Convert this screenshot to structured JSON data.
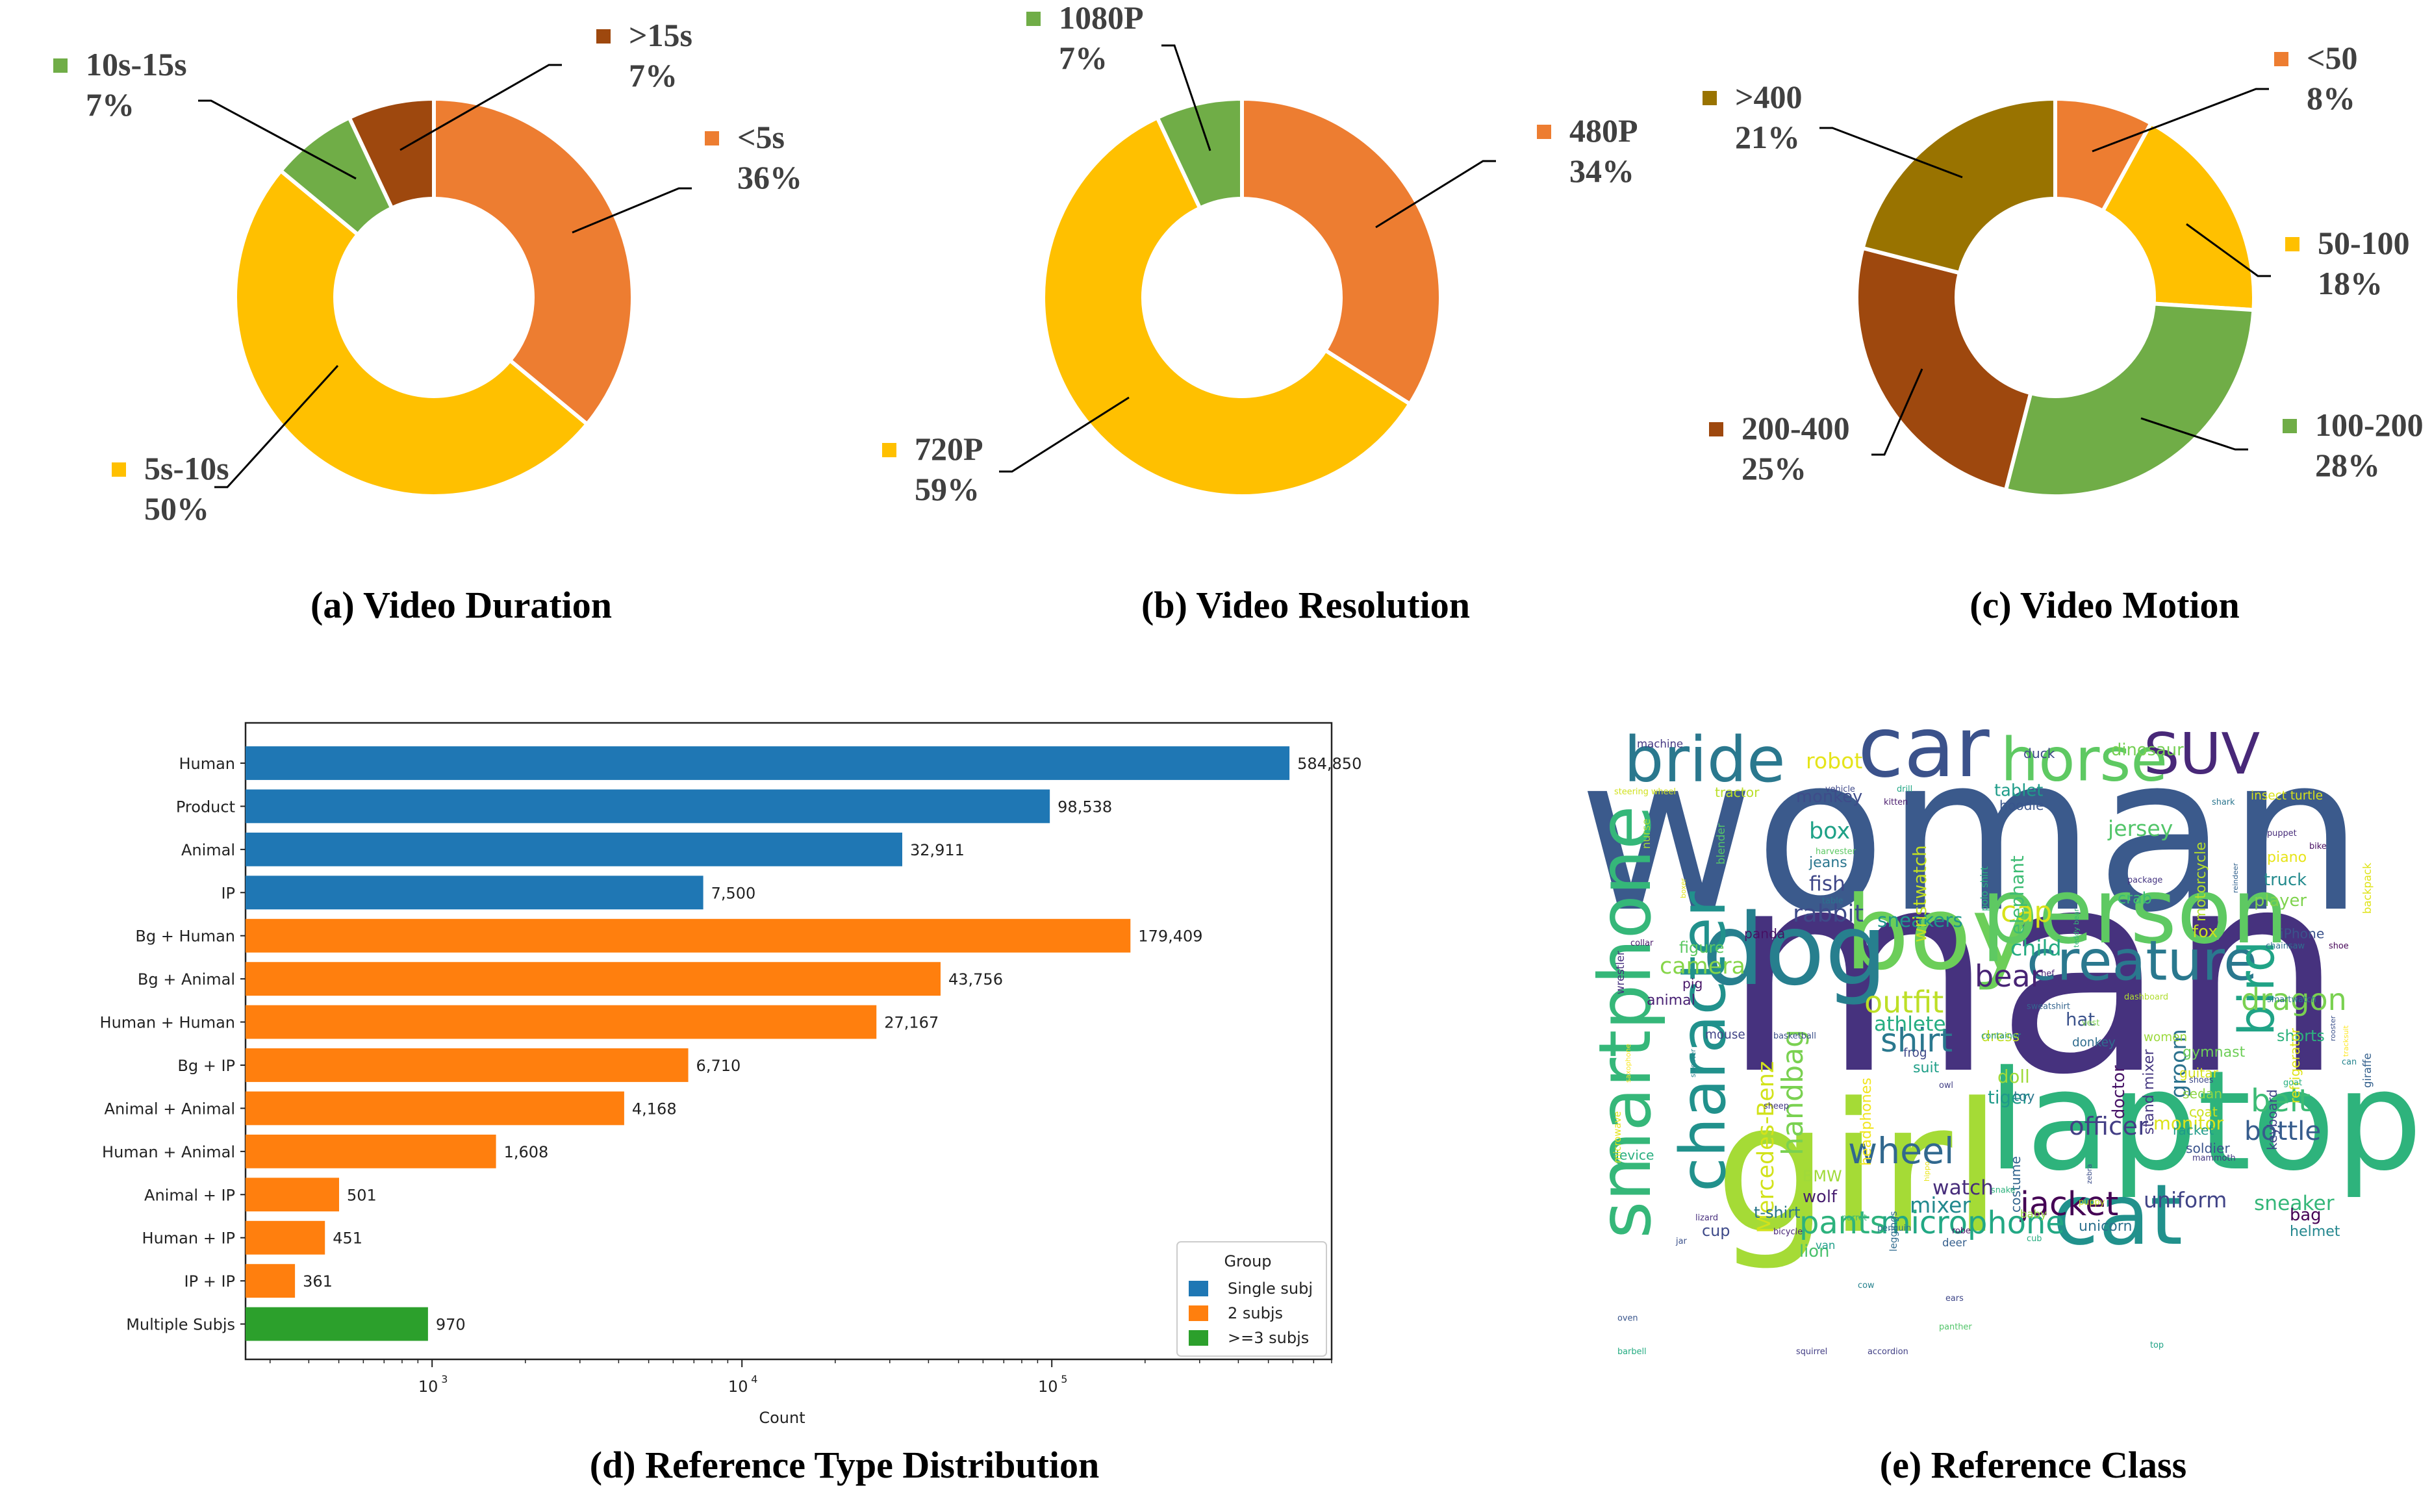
{
  "captions": {
    "a": "(a) Video Duration",
    "b": "(b) Video Resolution",
    "c": "(c) Video Motion",
    "d": "(d) Reference Type Distribution",
    "e": "(e) Reference Class"
  },
  "chart_data": [
    {
      "type": "pie",
      "title": "(a) Video Duration",
      "donut": true,
      "slices": [
        {
          "label": "<5s",
          "value": 36,
          "pct_label": "36%",
          "color": "#ED7D31"
        },
        {
          "label": "5s-10s",
          "value": 50,
          "pct_label": "50%",
          "color": "#FFC000"
        },
        {
          "label": "10s-15s",
          "value": 7,
          "pct_label": "7%",
          "color": "#70AD47"
        },
        {
          "label": ">15s",
          "value": 7,
          "pct_label": "7%",
          "color": "#9E480E"
        }
      ]
    },
    {
      "type": "pie",
      "title": "(b) Video Resolution",
      "donut": true,
      "slices": [
        {
          "label": "480P",
          "value": 34,
          "pct_label": "34%",
          "color": "#ED7D31"
        },
        {
          "label": "720P",
          "value": 59,
          "pct_label": "59%",
          "color": "#FFC000"
        },
        {
          "label": "1080P",
          "value": 7,
          "pct_label": "7%",
          "color": "#70AD47"
        }
      ]
    },
    {
      "type": "pie",
      "title": "(c) Video Motion",
      "donut": true,
      "slices": [
        {
          "label": "<50",
          "value": 8,
          "pct_label": "8%",
          "color": "#ED7D31"
        },
        {
          "label": "50-100",
          "value": 18,
          "pct_label": "18%",
          "color": "#FFC000"
        },
        {
          "label": "100-200",
          "value": 28,
          "pct_label": "28%",
          "color": "#70AD47"
        },
        {
          "label": "200-400",
          "value": 25,
          "pct_label": "25%",
          "color": "#9E480E"
        },
        {
          "label": ">400",
          "value": 21,
          "pct_label": "21%",
          "color": "#997300"
        }
      ]
    },
    {
      "type": "bar",
      "orientation": "horizontal",
      "title": "(d) Reference Type Distribution",
      "xlabel": "Count",
      "ylabel": "",
      "xscale": "log",
      "xlim": [
        250,
        800000
      ],
      "xticks": [
        {
          "value": 1000,
          "base": "10",
          "exp": "3"
        },
        {
          "value": 10000,
          "base": "10",
          "exp": "4"
        },
        {
          "value": 100000,
          "base": "10",
          "exp": "5"
        }
      ],
      "categories": [
        "Human",
        "Product",
        "Animal",
        "IP",
        "Bg + Human",
        "Bg + Animal",
        "Human + Human",
        "Bg + IP",
        "Animal + Animal",
        "Human + Animal",
        "Animal + IP",
        "Human + IP",
        "IP + IP",
        "Multiple Subjs"
      ],
      "values": [
        584850,
        98538,
        32911,
        7500,
        179409,
        43756,
        27167,
        6710,
        4168,
        1608,
        501,
        451,
        361,
        970
      ],
      "value_labels": [
        "584,850",
        "98,538",
        "32,911",
        "7,500",
        "179,409",
        "43,756",
        "27,167",
        "6,710",
        "4,168",
        "1,608",
        "501",
        "451",
        "361",
        "970"
      ],
      "groups": [
        "Single subj",
        "Single subj",
        "Single subj",
        "Single subj",
        "2 subjs",
        "2 subjs",
        "2 subjs",
        "2 subjs",
        "2 subjs",
        "2 subjs",
        "2 subjs",
        "2 subjs",
        "2 subjs",
        ">=3 subjs"
      ],
      "legend": {
        "title": "Group",
        "placement": "bottom-right",
        "entries": [
          {
            "label": "Single subj",
            "color": "#1F77B4"
          },
          {
            "label": "2 subjs",
            "color": "#FF7F0E"
          },
          {
            "label": ">=3 subjs",
            "color": "#2CA02C"
          }
        ]
      },
      "grid": false
    }
  ],
  "wordcloud": {
    "title": "(e) Reference Class",
    "words": [
      {
        "text": "woman",
        "weight": 100,
        "color": "#3B5A8C"
      },
      {
        "text": "man",
        "weight": 100,
        "color": "#46327E"
      },
      {
        "text": "girl",
        "weight": 70,
        "color": "#A5DB36"
      },
      {
        "text": "laptop",
        "weight": 65,
        "color": "#2EB37C"
      },
      {
        "text": "boy",
        "weight": 55,
        "color": "#6CCE59"
      },
      {
        "text": "person",
        "weight": 55,
        "color": "#5EC962"
      },
      {
        "text": "dog",
        "weight": 52,
        "color": "#277F8E"
      },
      {
        "text": "car",
        "weight": 50,
        "color": "#3B528B"
      },
      {
        "text": "smartphone",
        "weight": 50,
        "color": "#35B779"
      },
      {
        "text": "character",
        "weight": 45,
        "color": "#21918C"
      },
      {
        "text": "cat",
        "weight": 45,
        "color": "#21918C"
      },
      {
        "text": "bride",
        "weight": 42,
        "color": "#2A788E"
      },
      {
        "text": "horse",
        "weight": 42,
        "color": "#5EC962"
      },
      {
        "text": "SUV",
        "weight": 40,
        "color": "#482878"
      },
      {
        "text": "creature",
        "weight": 40,
        "color": "#2A788E"
      },
      {
        "text": "bird",
        "weight": 38,
        "color": "#20A386"
      },
      {
        "text": "wheel",
        "weight": 28,
        "color": "#31688E"
      },
      {
        "text": "jacket",
        "weight": 26,
        "color": "#440154"
      },
      {
        "text": "microphone",
        "weight": 26,
        "color": "#22A884"
      },
      {
        "text": "pants",
        "weight": 26,
        "color": "#2DB27D"
      },
      {
        "text": "handbag",
        "weight": 26,
        "color": "#7AD151"
      },
      {
        "text": "outfit",
        "weight": 25,
        "color": "#BDDF26"
      },
      {
        "text": "shirt",
        "weight": 25,
        "color": "#2A788E"
      },
      {
        "text": "dragon",
        "weight": 24,
        "color": "#7AD151"
      },
      {
        "text": "bear",
        "weight": 24,
        "color": "#482475"
      },
      {
        "text": "Mercedes-Benz",
        "weight": 22,
        "color": "#D2E21B"
      },
      {
        "text": "officer",
        "weight": 22,
        "color": "#433E85"
      },
      {
        "text": "bottle",
        "weight": 22,
        "color": "#365C8D"
      },
      {
        "text": "belt",
        "weight": 22,
        "color": "#3CBB75"
      },
      {
        "text": "cap",
        "weight": 22,
        "color": "#D8E219"
      },
      {
        "text": "rabbit",
        "weight": 20,
        "color": "#3E4A89"
      },
      {
        "text": "camera",
        "weight": 20,
        "color": "#86D549"
      },
      {
        "text": "groom",
        "weight": 20,
        "color": "#2C728E"
      },
      {
        "text": "uniform",
        "weight": 19,
        "color": "#414487"
      },
      {
        "text": "jersey",
        "weight": 19,
        "color": "#52C569"
      },
      {
        "text": "robot",
        "weight": 18,
        "color": "#E5E419"
      },
      {
        "text": "child",
        "weight": 18,
        "color": "#25AB82"
      },
      {
        "text": "box",
        "weight": 18,
        "color": "#1FA187"
      },
      {
        "text": "fish",
        "weight": 17,
        "color": "#3F4788"
      },
      {
        "text": "sneakers",
        "weight": 17,
        "color": "#1F968B"
      },
      {
        "text": "athlete",
        "weight": 17,
        "color": "#26AD81"
      },
      {
        "text": "wristwatch",
        "weight": 17,
        "color": "#C2DF23"
      },
      {
        "text": "elephant",
        "weight": 17,
        "color": "#3DBC74"
      },
      {
        "text": "sneaker",
        "weight": 17,
        "color": "#35B779"
      },
      {
        "text": "mixer",
        "weight": 17,
        "color": "#23898E"
      },
      {
        "text": "t-shirt",
        "weight": 16,
        "color": "#54C568"
      },
      {
        "text": "watch",
        "weight": 16,
        "color": "#472D7B"
      },
      {
        "text": "monkey",
        "weight": 15,
        "color": "#3E4C8A"
      },
      {
        "text": "dinosaur",
        "weight": 15,
        "color": "#75D054"
      },
      {
        "text": "tablet",
        "weight": 15,
        "color": "#1E9C89"
      },
      {
        "text": "motorcycle",
        "weight": 14,
        "color": "#B5DE2B"
      },
      {
        "text": "doctor",
        "weight": 14,
        "color": "#481467"
      },
      {
        "text": "stand mixer",
        "weight": 14,
        "color": "#453781"
      },
      {
        "text": "headphones",
        "weight": 14,
        "color": "#F1E51D"
      },
      {
        "text": "tiger",
        "weight": 14,
        "color": "#1F9A8A"
      },
      {
        "text": "doll",
        "weight": 14,
        "color": "#9FDA3A"
      },
      {
        "text": "bag",
        "weight": 14,
        "color": "#440154"
      },
      {
        "text": "monitor",
        "weight": 14,
        "color": "#DCE319"
      },
      {
        "text": "hat",
        "weight": 14,
        "color": "#3B528B"
      },
      {
        "text": "cup",
        "weight": 13,
        "color": "#3E4A89"
      },
      {
        "text": "lion",
        "weight": 13,
        "color": "#4AC16D"
      },
      {
        "text": "wolf",
        "weight": 13,
        "color": "#481F70"
      },
      {
        "text": "BMW",
        "weight": 13,
        "color": "#A0DA39"
      },
      {
        "text": "figure",
        "weight": 13,
        "color": "#5DC863"
      },
      {
        "text": "animal",
        "weight": 13,
        "color": "#482173"
      },
      {
        "text": "truck",
        "weight": 13,
        "color": "#238A8D"
      },
      {
        "text": "player",
        "weight": 13,
        "color": "#7FD34E"
      },
      {
        "text": "piano",
        "weight": 12,
        "color": "#E7E419"
      },
      {
        "text": "fox",
        "weight": 12,
        "color": "#C8E020"
      },
      {
        "text": "crab",
        "weight": 12,
        "color": "#3BBB75"
      },
      {
        "text": "shorts",
        "weight": 12,
        "color": "#2DB27D"
      },
      {
        "text": "keyboard",
        "weight": 12,
        "color": "#404688"
      },
      {
        "text": "refrigerator",
        "weight": 12,
        "color": "#DDE318"
      },
      {
        "text": "helmet",
        "weight": 12,
        "color": "#24878E"
      },
      {
        "text": "unicorn",
        "weight": 12,
        "color": "#2D718E"
      },
      {
        "text": "costume",
        "weight": 12,
        "color": "#32648E"
      },
      {
        "text": "device",
        "weight": 12,
        "color": "#29AF7F"
      },
      {
        "text": "t-shirt",
        "weight": 12,
        "color": "#2C738E"
      },
      {
        "text": "suit",
        "weight": 12,
        "color": "#1F9F88"
      },
      {
        "text": "dress",
        "weight": 12,
        "color": "#C0DF25"
      },
      {
        "text": "gymnast",
        "weight": 12,
        "color": "#6ECE58"
      },
      {
        "text": "guitar",
        "weight": 12,
        "color": "#D5E21A"
      },
      {
        "text": "sedan",
        "weight": 12,
        "color": "#8ED645"
      },
      {
        "text": "coat",
        "weight": 12,
        "color": "#CAE11F"
      },
      {
        "text": "soldier",
        "weight": 12,
        "color": "#3A548C"
      },
      {
        "text": "racket",
        "weight": 12,
        "color": "#1E9B8A"
      },
      {
        "text": "pig",
        "weight": 12,
        "color": "#481769"
      },
      {
        "text": "panda",
        "weight": 12,
        "color": "#471164"
      },
      {
        "text": "jeans",
        "weight": 12,
        "color": "#2A768E"
      },
      {
        "text": "tractor",
        "weight": 12,
        "color": "#BADE28"
      },
      {
        "text": "hoodie",
        "weight": 11,
        "color": "#39558C"
      },
      {
        "text": "duck",
        "weight": 11,
        "color": "#3E4989"
      },
      {
        "text": "insect turtle",
        "weight": 11,
        "color": "#D8E219"
      },
      {
        "text": "backpack",
        "weight": 11,
        "color": "#DFE318"
      },
      {
        "text": "giraffe",
        "weight": 11,
        "color": "#34608D"
      },
      {
        "text": "donkey",
        "weight": 11,
        "color": "#2F6C8E"
      },
      {
        "text": "women",
        "weight": 11,
        "color": "#9BD93C"
      },
      {
        "text": "frog",
        "weight": 11,
        "color": "#3F4889"
      },
      {
        "text": "toy",
        "weight": 11,
        "color": "#2A788E"
      },
      {
        "text": "mouse",
        "weight": 11,
        "color": "#414487"
      },
      {
        "text": "blender",
        "weight": 11,
        "color": "#54C568"
      },
      {
        "text": "nurse",
        "weight": 11,
        "color": "#A2DA37"
      },
      {
        "text": "wrestler",
        "weight": 11,
        "color": "#46307E"
      },
      {
        "text": "microwave",
        "weight": 10,
        "color": "#E3E418"
      },
      {
        "text": "baby",
        "weight": 10,
        "color": "#95D840"
      },
      {
        "text": "leggings",
        "weight": 10,
        "color": "#2F6B8E"
      },
      {
        "text": "van",
        "weight": 10,
        "color": "#1F9E89"
      },
      {
        "text": "deer",
        "weight": 10,
        "color": "#355F8D"
      },
      {
        "text": "polo shirt",
        "weight": 10,
        "color": "#29AF7F"
      },
      {
        "text": "machine",
        "weight": 9,
        "color": "#453882"
      },
      {
        "text": "steering wheel",
        "weight": 9,
        "color": "#D0E11C"
      },
      {
        "text": "vehicle",
        "weight": 8,
        "color": "#3F4889"
      },
      {
        "text": "drill",
        "weight": 8,
        "color": "#22A785"
      },
      {
        "text": "kitten",
        "weight": 8,
        "color": "#481A6C"
      },
      {
        "text": "harvester",
        "weight": 8,
        "color": "#5CC863"
      },
      {
        "text": "table",
        "weight": 8,
        "color": "#2C728E"
      },
      {
        "text": "boxer",
        "weight": 8,
        "color": "#E2E418"
      },
      {
        "text": "teddy bear",
        "weight": 8,
        "color": "#36B677"
      },
      {
        "text": "reindeer",
        "weight": 8,
        "color": "#33628D"
      },
      {
        "text": "package",
        "weight": 8,
        "color": "#453581"
      },
      {
        "text": "shark",
        "weight": 8,
        "color": "#2B758E"
      },
      {
        "text": "puppet",
        "weight": 8,
        "color": "#472C7A"
      },
      {
        "text": "bike",
        "weight": 8,
        "color": "#470E61"
      },
      {
        "text": "iPhone",
        "weight": 10,
        "color": "#3B528B"
      },
      {
        "text": "chainsaw",
        "weight": 8,
        "color": "#2E6E8E"
      },
      {
        "text": "shoe",
        "weight": 8,
        "color": "#450457"
      },
      {
        "text": "collar",
        "weight": 8,
        "color": "#48186A"
      },
      {
        "text": "chef",
        "weight": 8,
        "color": "#482576"
      },
      {
        "text": "sweatshirt",
        "weight": 8,
        "color": "#33638D"
      },
      {
        "text": "dashboard",
        "weight": 8,
        "color": "#B0DD2F"
      },
      {
        "text": "smartwatch",
        "weight": 8,
        "color": "#2B748E"
      },
      {
        "text": "vest",
        "weight": 8,
        "color": "#7CD250"
      },
      {
        "text": "rooster",
        "weight": 8,
        "color": "#3B518B"
      },
      {
        "text": "tracksuit",
        "weight": 8,
        "color": "#FDE725"
      },
      {
        "text": "container",
        "weight": 8,
        "color": "#20928C"
      },
      {
        "text": "basketball",
        "weight": 8,
        "color": "#3C4F8A"
      },
      {
        "text": "saxophone",
        "weight": 8,
        "color": "#F8E621"
      },
      {
        "text": "sweater",
        "weight": 8,
        "color": "#26828E"
      },
      {
        "text": "owl",
        "weight": 8,
        "color": "#424086"
      },
      {
        "text": "sheep",
        "weight": 8,
        "color": "#443A83"
      },
      {
        "text": "hippo",
        "weight": 8,
        "color": "#E8E419"
      },
      {
        "text": "zebra",
        "weight": 8,
        "color": "#3D4E8A"
      },
      {
        "text": "snake",
        "weight": 8,
        "color": "#2DB27D"
      },
      {
        "text": "puppy",
        "weight": 8,
        "color": "#C5E021"
      },
      {
        "text": "shoes",
        "weight": 8,
        "color": "#3E4A89"
      },
      {
        "text": "goat",
        "weight": 8,
        "color": "#29AF7F"
      },
      {
        "text": "can",
        "weight": 8,
        "color": "#25848E"
      },
      {
        "text": "lizard",
        "weight": 8,
        "color": "#472F7D"
      },
      {
        "text": "parrot",
        "weight": 8,
        "color": "#3BBB75"
      },
      {
        "text": "penguin",
        "weight": 8,
        "color": "#2E6F8E"
      },
      {
        "text": "robe",
        "weight": 8,
        "color": "#471365"
      },
      {
        "text": "bicycle",
        "weight": 8,
        "color": "#482677"
      },
      {
        "text": "mammoth",
        "weight": 8,
        "color": "#443983"
      },
      {
        "text": "cub",
        "weight": 8,
        "color": "#27AD81"
      },
      {
        "text": "jar",
        "weight": 8,
        "color": "#3B518B"
      },
      {
        "text": "cow",
        "weight": 8,
        "color": "#26828E"
      },
      {
        "text": "ears",
        "weight": 8,
        "color": "#3F4788"
      },
      {
        "text": "panther",
        "weight": 8,
        "color": "#52C569"
      },
      {
        "text": "oven",
        "weight": 8,
        "color": "#39558C"
      },
      {
        "text": "barbell",
        "weight": 8,
        "color": "#25AC82"
      },
      {
        "text": "squirrel",
        "weight": 8,
        "color": "#433E85"
      },
      {
        "text": "accordion",
        "weight": 8,
        "color": "#424186"
      },
      {
        "text": "top",
        "weight": 8,
        "color": "#20A386"
      }
    ]
  }
}
